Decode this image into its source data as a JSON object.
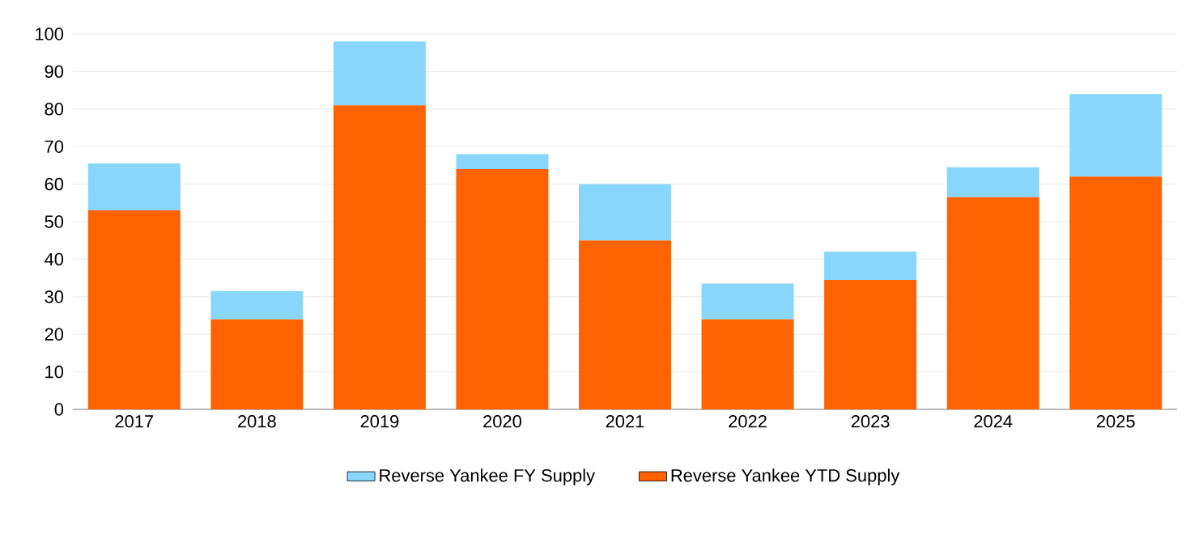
{
  "chart_data": {
    "type": "bar",
    "stacked": true,
    "categories": [
      "2017",
      "2018",
      "2019",
      "2020",
      "2021",
      "2022",
      "2023",
      "2024",
      "2025"
    ],
    "series": [
      {
        "name": "Reverse Yankee YTD Supply",
        "color": "#ff6200",
        "values": [
          53,
          24,
          81,
          64,
          45,
          24,
          34.5,
          56.5,
          62
        ]
      },
      {
        "name": "Reverse Yankee FY Supply",
        "color": "#89d6fd",
        "values": [
          12.5,
          7.5,
          17,
          4,
          15,
          9.5,
          7.5,
          8,
          22
        ]
      }
    ],
    "ylim": [
      0,
      100
    ],
    "yticks": [
      0,
      10,
      20,
      30,
      40,
      50,
      60,
      70,
      80,
      90,
      100
    ],
    "grid": "y",
    "legend": "bottom"
  }
}
